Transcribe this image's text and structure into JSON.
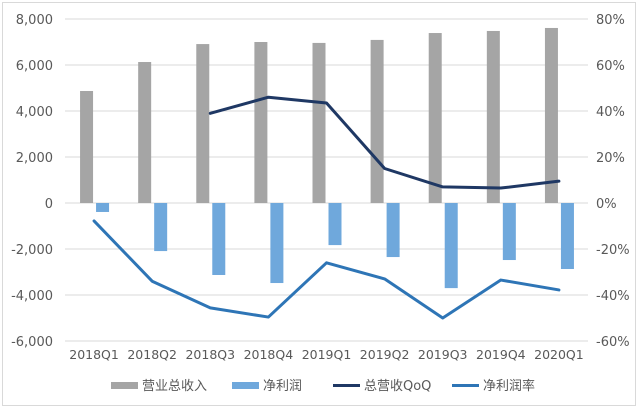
{
  "chart_data": {
    "type": "bar",
    "title": "",
    "categories": [
      "2018Q1",
      "2018Q2",
      "2018Q3",
      "2018Q4",
      "2019Q1",
      "2019Q2",
      "2019Q3",
      "2019Q4",
      "2020Q1"
    ],
    "series": [
      {
        "name": "营业总收入",
        "type": "bar",
        "axis": "left",
        "color": "#a5a5a5",
        "values": [
          4870,
          6130,
          6910,
          7000,
          6960,
          7090,
          7390,
          7480,
          7610
        ]
      },
      {
        "name": "净利润",
        "type": "bar",
        "axis": "left",
        "color": "#6fa8dc",
        "values": [
          -390,
          -2090,
          -3130,
          -3480,
          -1830,
          -2350,
          -3700,
          -2480,
          -2870
        ]
      },
      {
        "name": "总营收QoQ",
        "type": "line",
        "axis": "right",
        "color": "#1f3864",
        "values": [
          null,
          null,
          39,
          46,
          43.5,
          15,
          7,
          6.5,
          9.5
        ]
      },
      {
        "name": "净利润率",
        "type": "line",
        "axis": "right",
        "color": "#2e75b6",
        "values": [
          -7.8,
          -34,
          -45.6,
          -49.6,
          -26,
          -33,
          -50,
          -33.5,
          -37.8
        ]
      }
    ],
    "left_axis": {
      "min": -6000,
      "max": 8000,
      "step": 2000,
      "tick_labels": [
        "8,000",
        "6,000",
        "4,000",
        "2,000",
        "0",
        "-2,000",
        "-4,000",
        "-6,000"
      ]
    },
    "right_axis": {
      "min": -60,
      "max": 80,
      "step": 20,
      "unit": "%",
      "tick_labels": [
        "80%",
        "60%",
        "40%",
        "20%",
        "0%",
        "-20%",
        "-40%",
        "-60%"
      ]
    },
    "xlabel": "",
    "ylabel": "",
    "grid": true,
    "legend_position": "bottom"
  },
  "legend": [
    {
      "label": "营业总收入",
      "kind": "bar",
      "color": "#a5a5a5"
    },
    {
      "label": "净利润",
      "kind": "bar",
      "color": "#6fa8dc"
    },
    {
      "label": "总营收QoQ",
      "kind": "line",
      "color": "#1f3864"
    },
    {
      "label": "净利润率",
      "kind": "line",
      "color": "#2e75b6"
    }
  ]
}
